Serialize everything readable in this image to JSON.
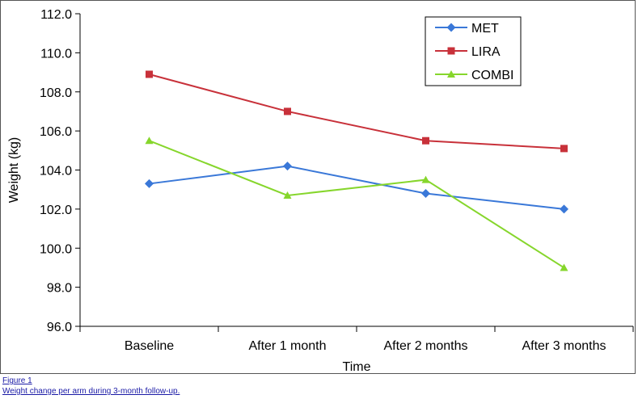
{
  "chart_data": {
    "type": "line",
    "title": "",
    "xlabel": "Time",
    "ylabel": "Weight (kg)",
    "ylim": [
      96.0,
      112.0
    ],
    "yticks": [
      "96.0",
      "98.0",
      "100.0",
      "102.0",
      "104.0",
      "106.0",
      "108.0",
      "110.0",
      "112.0"
    ],
    "categories": [
      "Baseline",
      "After 1 month",
      "After 2 months",
      "After 3 months"
    ],
    "legend_position": "top-right",
    "grid": false,
    "series": [
      {
        "name": "MET",
        "color": "#3a78d8",
        "marker": "diamond",
        "values": [
          103.3,
          104.2,
          102.8,
          102.0
        ]
      },
      {
        "name": "LIRA",
        "color": "#c8313a",
        "marker": "square",
        "values": [
          108.9,
          107.0,
          105.5,
          105.1
        ]
      },
      {
        "name": "COMBI",
        "color": "#86d62c",
        "marker": "triangle",
        "values": [
          105.5,
          102.7,
          103.5,
          99.0
        ]
      }
    ]
  },
  "caption": {
    "figure_label": "Figure 1",
    "text": "Weight change per arm during 3-month follow-up."
  }
}
